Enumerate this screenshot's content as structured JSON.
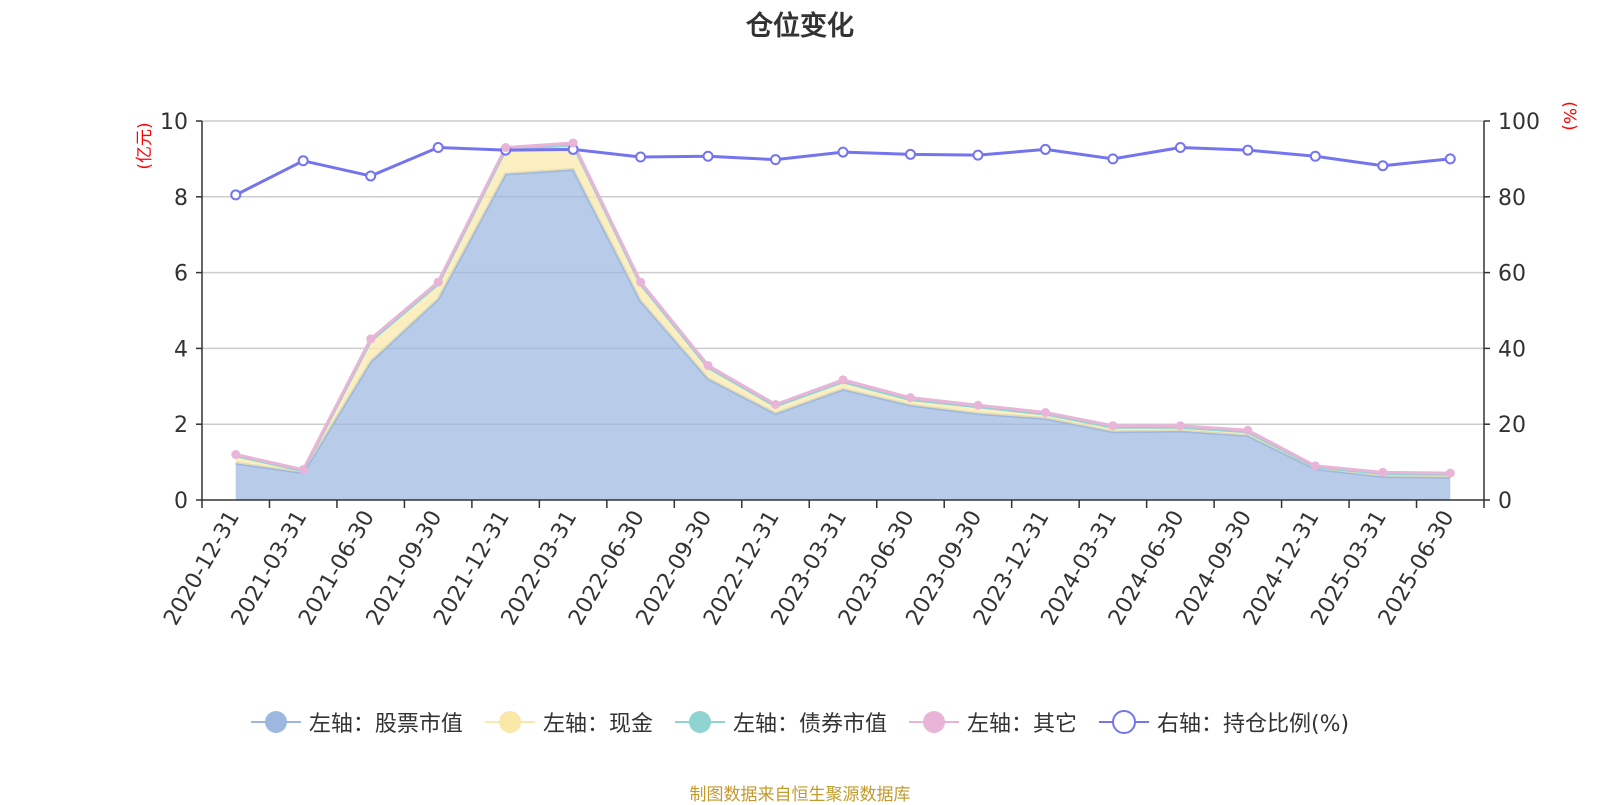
{
  "page": {
    "title": "仓位变化",
    "footer": "制图数据来自恒生聚源数据库"
  },
  "chart_data": {
    "type": "area",
    "title": "仓位变化",
    "categories": [
      "2020-12-31",
      "2021-03-31",
      "2021-06-30",
      "2021-09-30",
      "2021-12-31",
      "2022-03-31",
      "2022-06-30",
      "2022-09-30",
      "2022-12-31",
      "2023-03-31",
      "2023-06-30",
      "2023-09-30",
      "2023-12-31",
      "2024-03-31",
      "2024-06-30",
      "2024-09-30",
      "2024-12-31",
      "2025-03-31",
      "2025-06-30"
    ],
    "left_axis": {
      "unit": "(亿元)",
      "ylim": [
        0,
        10
      ],
      "ticks": [
        0,
        2,
        4,
        6,
        8,
        10
      ],
      "unit_color": "#ff0000"
    },
    "right_axis": {
      "unit": "(%)",
      "ylim": [
        0,
        100
      ],
      "ticks": [
        0,
        20,
        40,
        60,
        80,
        100
      ],
      "unit_color": "#ff0000"
    },
    "grid": true,
    "legend_position": "bottom",
    "series": [
      {
        "name": "左轴：股票市值",
        "axis": "left",
        "type": "area",
        "stack": true,
        "color": "#9cb8e0",
        "values": [
          0.97,
          0.72,
          3.65,
          5.3,
          8.6,
          8.72,
          5.25,
          3.2,
          2.28,
          2.92,
          2.5,
          2.28,
          2.15,
          1.8,
          1.82,
          1.7,
          0.82,
          0.62,
          0.6
        ]
      },
      {
        "name": "左轴：现金",
        "axis": "left",
        "type": "area",
        "stack": true,
        "color": "#fae8a8",
        "values": [
          0.2,
          0.05,
          0.55,
          0.4,
          0.65,
          0.65,
          0.45,
          0.3,
          0.2,
          0.2,
          0.15,
          0.18,
          0.12,
          0.12,
          0.1,
          0.1,
          0.05,
          0.08,
          0.08
        ]
      },
      {
        "name": "左轴：债券市值",
        "axis": "left",
        "type": "area",
        "stack": true,
        "color": "#8fd3d3",
        "values": [
          0,
          0,
          0,
          0,
          0,
          0,
          0,
          0,
          0,
          0,
          0,
          0,
          0,
          0,
          0,
          0,
          0,
          0,
          0
        ]
      },
      {
        "name": "左轴：其它",
        "axis": "left",
        "type": "area",
        "stack": true,
        "color": "#e8b4d8",
        "values": [
          0.03,
          0.03,
          0.05,
          0.05,
          0.05,
          0.05,
          0.05,
          0.05,
          0.04,
          0.05,
          0.05,
          0.04,
          0.04,
          0.04,
          0.04,
          0.04,
          0.03,
          0.03,
          0.03
        ]
      },
      {
        "name": "右轴：持仓比例(%)",
        "axis": "right",
        "type": "line",
        "color": "#7474f0",
        "values": [
          80.5,
          89.5,
          85.5,
          93,
          92.3,
          92.5,
          90.5,
          90.7,
          89.8,
          91.8,
          91.2,
          91,
          92.5,
          90,
          93,
          92.3,
          90.7,
          88.2,
          90
        ]
      }
    ]
  }
}
